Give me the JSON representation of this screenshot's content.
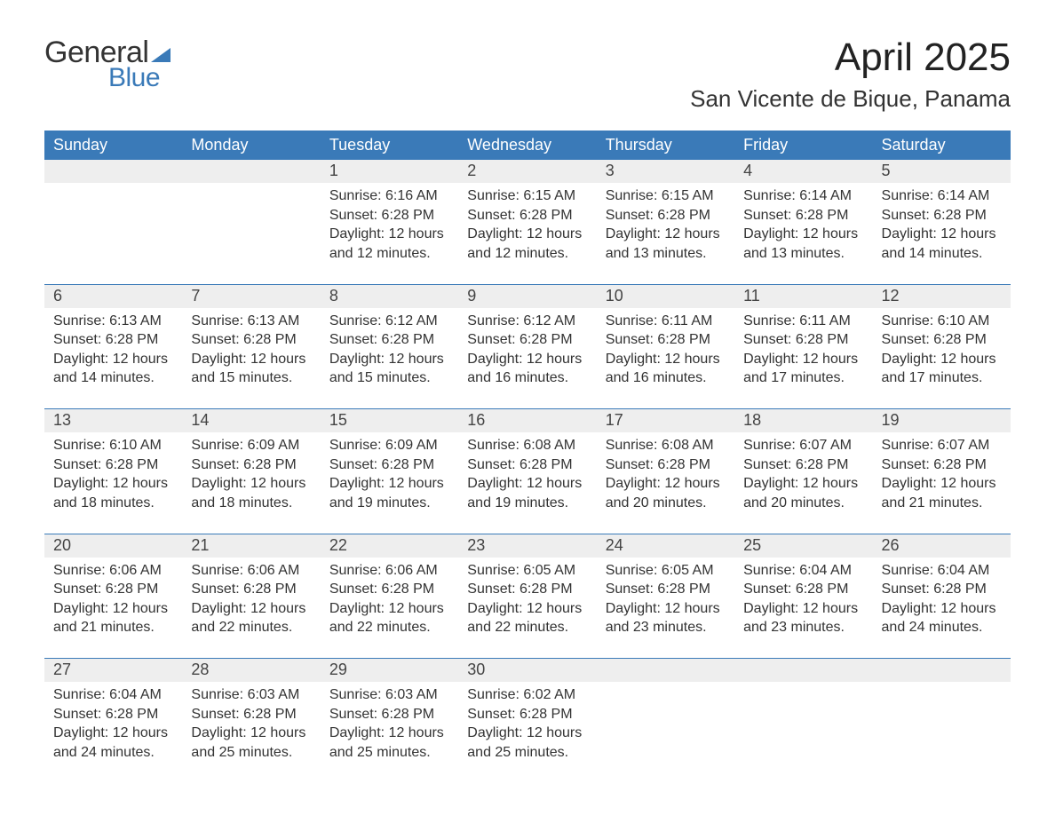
{
  "brand": {
    "word1": "General",
    "word2": "Blue",
    "flag_color": "#3a7ab8"
  },
  "title": "April 2025",
  "location": "San Vicente de Bique, Panama",
  "colors": {
    "header_bg": "#3a7ab8",
    "header_text": "#ffffff",
    "daynum_bg": "#eeeeee",
    "rule": "#3a7ab8",
    "body_text": "#333333",
    "background": "#ffffff"
  },
  "typography": {
    "title_fontsize": 44,
    "location_fontsize": 26,
    "header_fontsize": 18,
    "daynum_fontsize": 18,
    "cell_fontsize": 16
  },
  "weekdays": [
    "Sunday",
    "Monday",
    "Tuesday",
    "Wednesday",
    "Thursday",
    "Friday",
    "Saturday"
  ],
  "weeks": [
    [
      null,
      null,
      {
        "day": "1",
        "sunrise": "Sunrise: 6:16 AM",
        "sunset": "Sunset: 6:28 PM",
        "daylight1": "Daylight: 12 hours",
        "daylight2": "and 12 minutes."
      },
      {
        "day": "2",
        "sunrise": "Sunrise: 6:15 AM",
        "sunset": "Sunset: 6:28 PM",
        "daylight1": "Daylight: 12 hours",
        "daylight2": "and 12 minutes."
      },
      {
        "day": "3",
        "sunrise": "Sunrise: 6:15 AM",
        "sunset": "Sunset: 6:28 PM",
        "daylight1": "Daylight: 12 hours",
        "daylight2": "and 13 minutes."
      },
      {
        "day": "4",
        "sunrise": "Sunrise: 6:14 AM",
        "sunset": "Sunset: 6:28 PM",
        "daylight1": "Daylight: 12 hours",
        "daylight2": "and 13 minutes."
      },
      {
        "day": "5",
        "sunrise": "Sunrise: 6:14 AM",
        "sunset": "Sunset: 6:28 PM",
        "daylight1": "Daylight: 12 hours",
        "daylight2": "and 14 minutes."
      }
    ],
    [
      {
        "day": "6",
        "sunrise": "Sunrise: 6:13 AM",
        "sunset": "Sunset: 6:28 PM",
        "daylight1": "Daylight: 12 hours",
        "daylight2": "and 14 minutes."
      },
      {
        "day": "7",
        "sunrise": "Sunrise: 6:13 AM",
        "sunset": "Sunset: 6:28 PM",
        "daylight1": "Daylight: 12 hours",
        "daylight2": "and 15 minutes."
      },
      {
        "day": "8",
        "sunrise": "Sunrise: 6:12 AM",
        "sunset": "Sunset: 6:28 PM",
        "daylight1": "Daylight: 12 hours",
        "daylight2": "and 15 minutes."
      },
      {
        "day": "9",
        "sunrise": "Sunrise: 6:12 AM",
        "sunset": "Sunset: 6:28 PM",
        "daylight1": "Daylight: 12 hours",
        "daylight2": "and 16 minutes."
      },
      {
        "day": "10",
        "sunrise": "Sunrise: 6:11 AM",
        "sunset": "Sunset: 6:28 PM",
        "daylight1": "Daylight: 12 hours",
        "daylight2": "and 16 minutes."
      },
      {
        "day": "11",
        "sunrise": "Sunrise: 6:11 AM",
        "sunset": "Sunset: 6:28 PM",
        "daylight1": "Daylight: 12 hours",
        "daylight2": "and 17 minutes."
      },
      {
        "day": "12",
        "sunrise": "Sunrise: 6:10 AM",
        "sunset": "Sunset: 6:28 PM",
        "daylight1": "Daylight: 12 hours",
        "daylight2": "and 17 minutes."
      }
    ],
    [
      {
        "day": "13",
        "sunrise": "Sunrise: 6:10 AM",
        "sunset": "Sunset: 6:28 PM",
        "daylight1": "Daylight: 12 hours",
        "daylight2": "and 18 minutes."
      },
      {
        "day": "14",
        "sunrise": "Sunrise: 6:09 AM",
        "sunset": "Sunset: 6:28 PM",
        "daylight1": "Daylight: 12 hours",
        "daylight2": "and 18 minutes."
      },
      {
        "day": "15",
        "sunrise": "Sunrise: 6:09 AM",
        "sunset": "Sunset: 6:28 PM",
        "daylight1": "Daylight: 12 hours",
        "daylight2": "and 19 minutes."
      },
      {
        "day": "16",
        "sunrise": "Sunrise: 6:08 AM",
        "sunset": "Sunset: 6:28 PM",
        "daylight1": "Daylight: 12 hours",
        "daylight2": "and 19 minutes."
      },
      {
        "day": "17",
        "sunrise": "Sunrise: 6:08 AM",
        "sunset": "Sunset: 6:28 PM",
        "daylight1": "Daylight: 12 hours",
        "daylight2": "and 20 minutes."
      },
      {
        "day": "18",
        "sunrise": "Sunrise: 6:07 AM",
        "sunset": "Sunset: 6:28 PM",
        "daylight1": "Daylight: 12 hours",
        "daylight2": "and 20 minutes."
      },
      {
        "day": "19",
        "sunrise": "Sunrise: 6:07 AM",
        "sunset": "Sunset: 6:28 PM",
        "daylight1": "Daylight: 12 hours",
        "daylight2": "and 21 minutes."
      }
    ],
    [
      {
        "day": "20",
        "sunrise": "Sunrise: 6:06 AM",
        "sunset": "Sunset: 6:28 PM",
        "daylight1": "Daylight: 12 hours",
        "daylight2": "and 21 minutes."
      },
      {
        "day": "21",
        "sunrise": "Sunrise: 6:06 AM",
        "sunset": "Sunset: 6:28 PM",
        "daylight1": "Daylight: 12 hours",
        "daylight2": "and 22 minutes."
      },
      {
        "day": "22",
        "sunrise": "Sunrise: 6:06 AM",
        "sunset": "Sunset: 6:28 PM",
        "daylight1": "Daylight: 12 hours",
        "daylight2": "and 22 minutes."
      },
      {
        "day": "23",
        "sunrise": "Sunrise: 6:05 AM",
        "sunset": "Sunset: 6:28 PM",
        "daylight1": "Daylight: 12 hours",
        "daylight2": "and 22 minutes."
      },
      {
        "day": "24",
        "sunrise": "Sunrise: 6:05 AM",
        "sunset": "Sunset: 6:28 PM",
        "daylight1": "Daylight: 12 hours",
        "daylight2": "and 23 minutes."
      },
      {
        "day": "25",
        "sunrise": "Sunrise: 6:04 AM",
        "sunset": "Sunset: 6:28 PM",
        "daylight1": "Daylight: 12 hours",
        "daylight2": "and 23 minutes."
      },
      {
        "day": "26",
        "sunrise": "Sunrise: 6:04 AM",
        "sunset": "Sunset: 6:28 PM",
        "daylight1": "Daylight: 12 hours",
        "daylight2": "and 24 minutes."
      }
    ],
    [
      {
        "day": "27",
        "sunrise": "Sunrise: 6:04 AM",
        "sunset": "Sunset: 6:28 PM",
        "daylight1": "Daylight: 12 hours",
        "daylight2": "and 24 minutes."
      },
      {
        "day": "28",
        "sunrise": "Sunrise: 6:03 AM",
        "sunset": "Sunset: 6:28 PM",
        "daylight1": "Daylight: 12 hours",
        "daylight2": "and 25 minutes."
      },
      {
        "day": "29",
        "sunrise": "Sunrise: 6:03 AM",
        "sunset": "Sunset: 6:28 PM",
        "daylight1": "Daylight: 12 hours",
        "daylight2": "and 25 minutes."
      },
      {
        "day": "30",
        "sunrise": "Sunrise: 6:02 AM",
        "sunset": "Sunset: 6:28 PM",
        "daylight1": "Daylight: 12 hours",
        "daylight2": "and 25 minutes."
      },
      null,
      null,
      null
    ]
  ]
}
